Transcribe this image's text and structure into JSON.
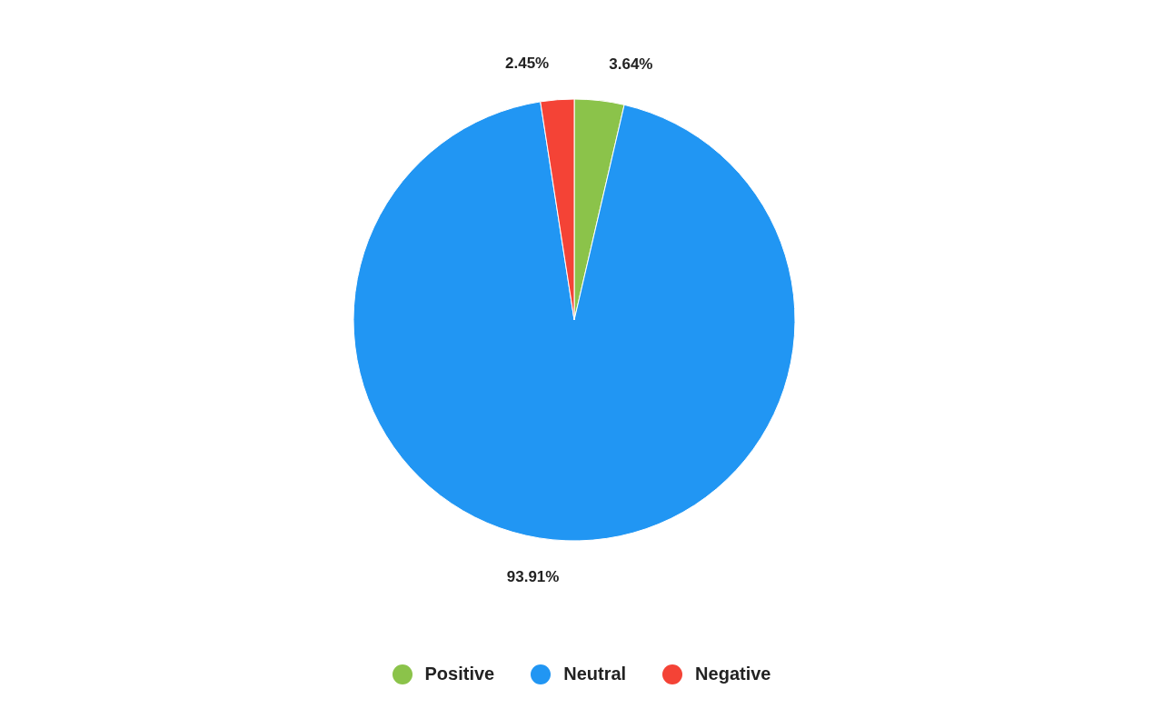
{
  "chart_data": {
    "type": "pie",
    "categories": [
      "Positive",
      "Neutral",
      "Negative"
    ],
    "values": [
      3.64,
      93.91,
      2.45
    ],
    "colors": [
      "#8bc34a",
      "#2196f3",
      "#f44336"
    ],
    "value_labels": [
      "3.64%",
      "93.91%",
      "2.45%"
    ],
    "legend": "bottom"
  }
}
